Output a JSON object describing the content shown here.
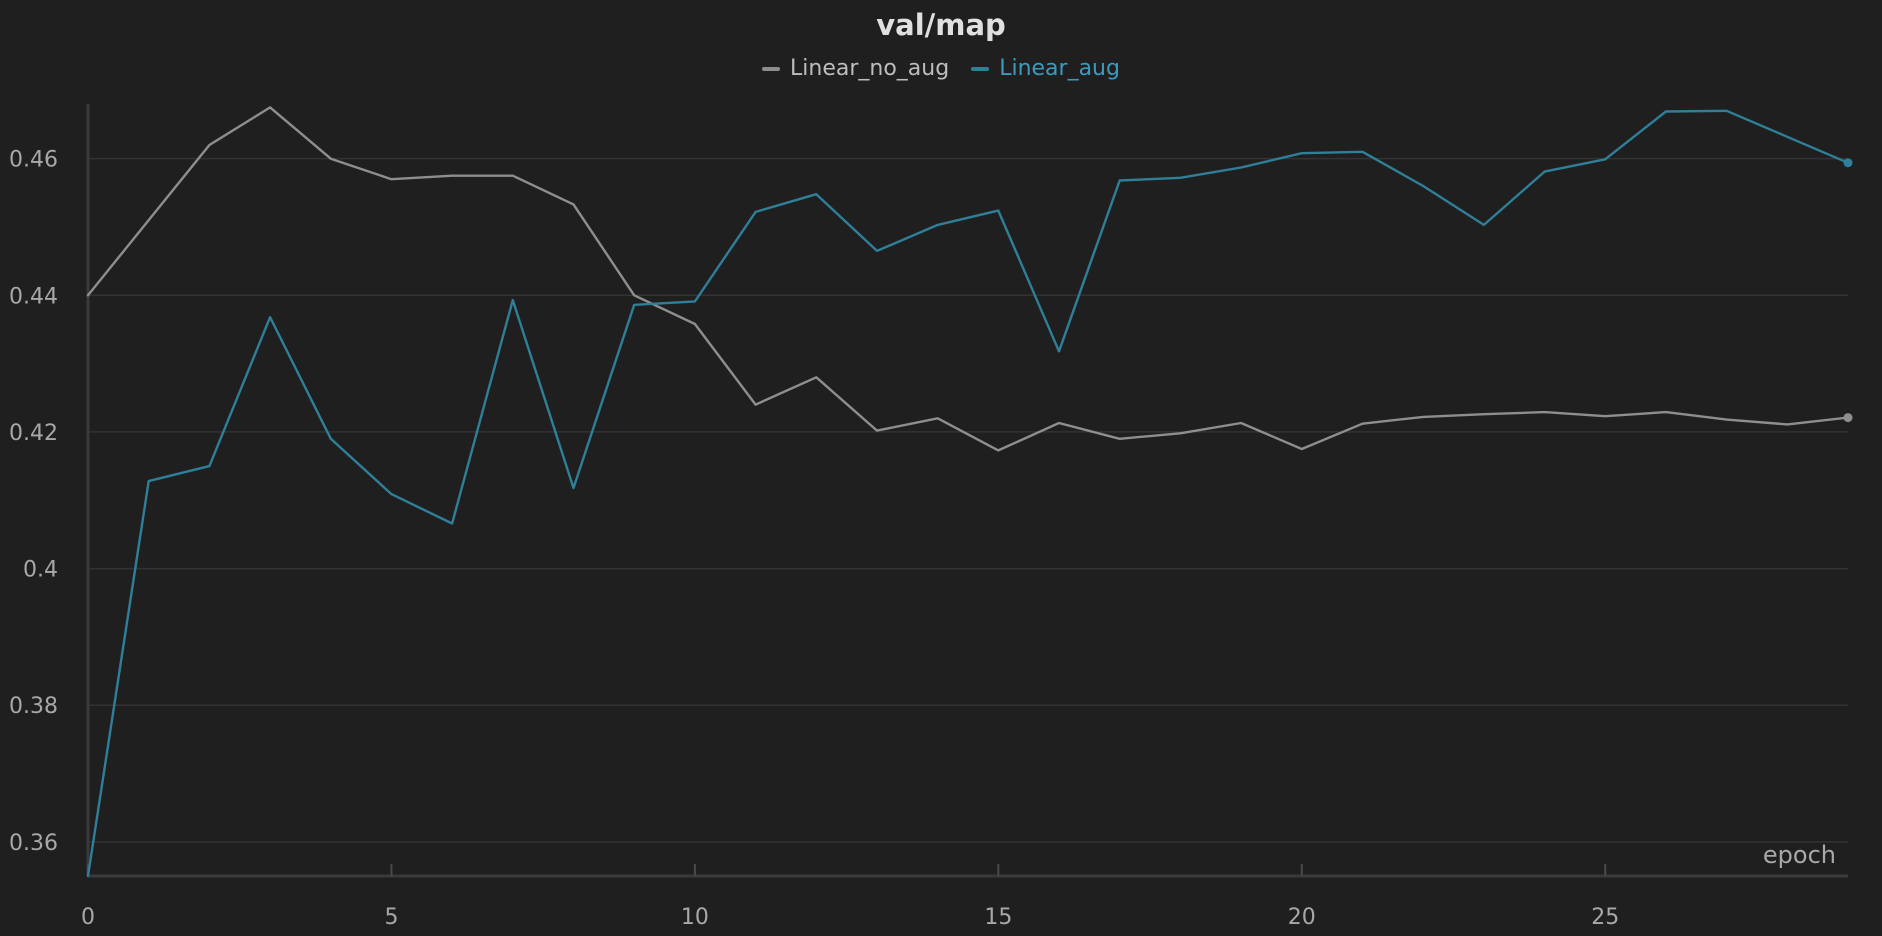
{
  "chart_data": {
    "type": "line",
    "title": "val/map",
    "xlabel": "epoch",
    "ylabel": "",
    "xlim": [
      0,
      29
    ],
    "ylim": [
      0.355,
      0.468
    ],
    "x_ticks": [
      0,
      5,
      10,
      15,
      20,
      25
    ],
    "y_ticks": [
      0.36,
      0.38,
      0.4,
      0.42,
      0.44,
      0.46
    ],
    "y_tick_labels": [
      "0.36",
      "0.38",
      "0.4",
      "0.42",
      "0.44",
      "0.46"
    ],
    "grid": true,
    "legend_position": "top-center",
    "x": [
      0,
      1,
      2,
      3,
      4,
      5,
      6,
      7,
      8,
      9,
      10,
      11,
      12,
      13,
      14,
      15,
      16,
      17,
      18,
      19,
      20,
      21,
      22,
      23,
      24,
      25,
      26,
      27,
      28,
      29
    ],
    "series": [
      {
        "name": "Linear_no_aug",
        "color": "#8e8e8e",
        "values": [
          0.44,
          0.451,
          0.462,
          0.4675,
          0.46,
          0.457,
          0.4575,
          0.4575,
          0.4533,
          0.44,
          0.4358,
          0.424,
          0.428,
          0.4202,
          0.422,
          0.4173,
          0.4213,
          0.419,
          0.4198,
          0.4213,
          0.4175,
          0.4212,
          0.4222,
          0.4226,
          0.4229,
          0.4223,
          0.4229,
          0.4218,
          0.4211,
          0.4221
        ]
      },
      {
        "name": "Linear_aug",
        "color": "#2f7f99",
        "values": [
          0.355,
          0.4128,
          0.415,
          0.4368,
          0.419,
          0.4109,
          0.4066,
          0.4393,
          0.4118,
          0.4386,
          0.4391,
          0.4522,
          0.4548,
          0.4465,
          0.4503,
          0.4524,
          0.4318,
          0.4568,
          0.4572,
          0.4587,
          0.4608,
          0.461,
          0.456,
          0.4503,
          0.4581,
          0.4599,
          0.4669,
          0.467,
          0.4632,
          0.4594
        ]
      }
    ]
  }
}
